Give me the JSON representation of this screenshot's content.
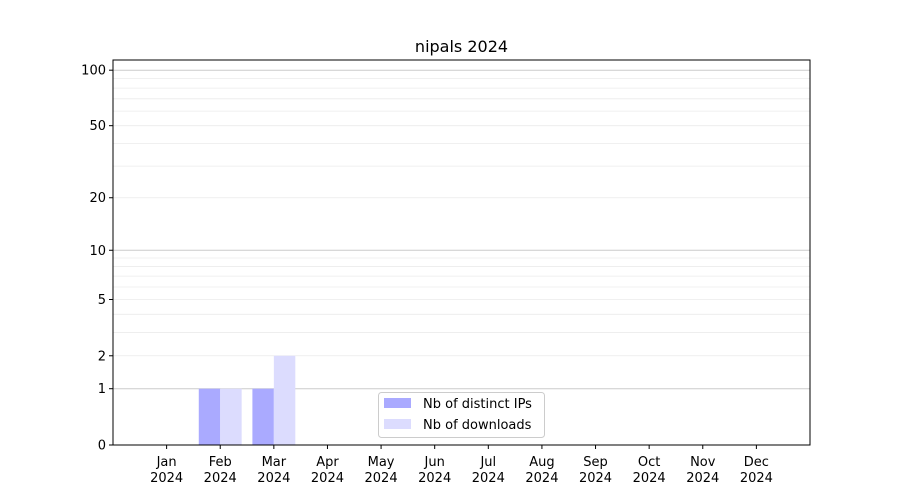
{
  "chart_data": {
    "type": "bar",
    "title": "nipals 2024",
    "xlabel": "",
    "ylabel": "",
    "categories": [
      "Jan\n2024",
      "Feb\n2024",
      "Mar\n2024",
      "Apr\n2024",
      "May\n2024",
      "Jun\n2024",
      "Jul\n2024",
      "Aug\n2024",
      "Sep\n2024",
      "Oct\n2024",
      "Nov\n2024",
      "Dec\n2024"
    ],
    "series": [
      {
        "name": "Nb of distinct IPs",
        "color": "#aaaaff",
        "values": [
          0,
          1,
          1,
          0,
          0,
          0,
          0,
          0,
          0,
          0,
          0,
          0
        ]
      },
      {
        "name": "Nb of downloads",
        "color": "#dcdcfe",
        "values": [
          0,
          1,
          2,
          0,
          0,
          0,
          0,
          0,
          0,
          0,
          0,
          0
        ]
      }
    ],
    "y_scale": "log10(1+y)",
    "ylim": [
      0,
      113.5
    ],
    "xlim": [
      0,
      13
    ],
    "yticks": [
      0,
      1,
      2,
      5,
      10,
      20,
      50,
      100
    ],
    "ytick_labels": [
      "0",
      "1",
      "2",
      "5",
      "10",
      "20",
      "50",
      "100"
    ],
    "major_grid": [
      1,
      10,
      100
    ],
    "minor_grid": [
      2,
      3,
      4,
      5,
      6,
      7,
      8,
      9,
      20,
      30,
      40,
      50,
      60,
      70,
      80,
      90
    ],
    "grid": true,
    "legend_placement": "lower center"
  }
}
